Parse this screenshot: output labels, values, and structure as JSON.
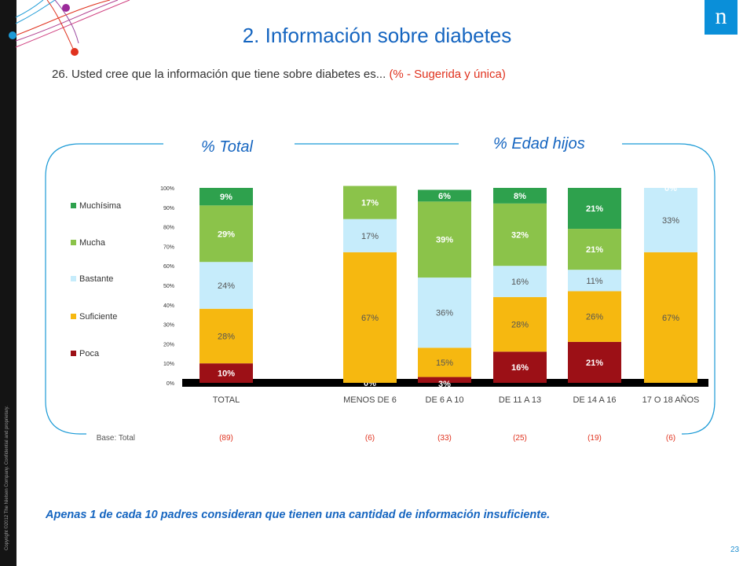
{
  "title": "2. Información sobre diabetes",
  "question": "26. Usted cree que la información que tiene sobre diabetes es...",
  "question_note": "(% - Sugerida y única)",
  "group_labels": {
    "total": "% Total",
    "edad": "% Edad hijos"
  },
  "base_label": "Base: Total",
  "footnote": "Apenas 1 de cada 10  padres consideran que tienen una cantidad de información insuficiente.",
  "page_number": "23",
  "copyright": "Copyright ©2012 The Nielsen Company. Confidential and proprietary.",
  "logo_text": "n",
  "colors": {
    "title": "#1565c0",
    "accent_red": "#e0321e",
    "Poca": "#9c1016",
    "Suficiente": "#f6b810",
    "Bastante": "#c6ecfb",
    "Mucha": "#8bc34a",
    "Muchísima": "#2ea14d"
  },
  "chart_data": {
    "type": "bar",
    "stacked": true,
    "categories": [
      "TOTAL",
      "MENOS DE 6",
      "DE 6 A 10",
      "DE 11  A 13",
      "DE 14  A 16",
      "17 O 18 AÑOS"
    ],
    "bases": [
      "(89)",
      "(6)",
      "(33)",
      "(25)",
      "(19)",
      "(6)"
    ],
    "series": [
      {
        "name": "Poca",
        "values": [
          10,
          0,
          3,
          16,
          21,
          0
        ],
        "labels": [
          "10%",
          "0%",
          "3%",
          "16%",
          "21%",
          ""
        ]
      },
      {
        "name": "Suficiente",
        "values": [
          28,
          67,
          15,
          28,
          26,
          67
        ],
        "labels": [
          "28%",
          "67%",
          "15%",
          "28%",
          "26%",
          "67%"
        ]
      },
      {
        "name": "Bastante",
        "values": [
          24,
          17,
          36,
          16,
          11,
          33
        ],
        "labels": [
          "24%",
          "17%",
          "36%",
          "16%",
          "11%",
          "33%"
        ]
      },
      {
        "name": "Mucha",
        "values": [
          29,
          17,
          39,
          32,
          21,
          0
        ],
        "labels": [
          "29%",
          "17%",
          "39%",
          "32%",
          "21%",
          ""
        ]
      },
      {
        "name": "Muchísima",
        "values": [
          9,
          0,
          6,
          8,
          21,
          0
        ],
        "labels": [
          "9%",
          "",
          "6%",
          "8%",
          "21%",
          "0%"
        ]
      }
    ],
    "yticks": [
      "0%",
      "10%",
      "20%",
      "30%",
      "40%",
      "50%",
      "60%",
      "70%",
      "80%",
      "90%",
      "100%"
    ],
    "ylim": [
      0,
      100
    ],
    "legend": [
      "Muchísima",
      "Mucha",
      "Bastante",
      "Suficiente",
      "Poca"
    ],
    "legend_position": "left"
  }
}
